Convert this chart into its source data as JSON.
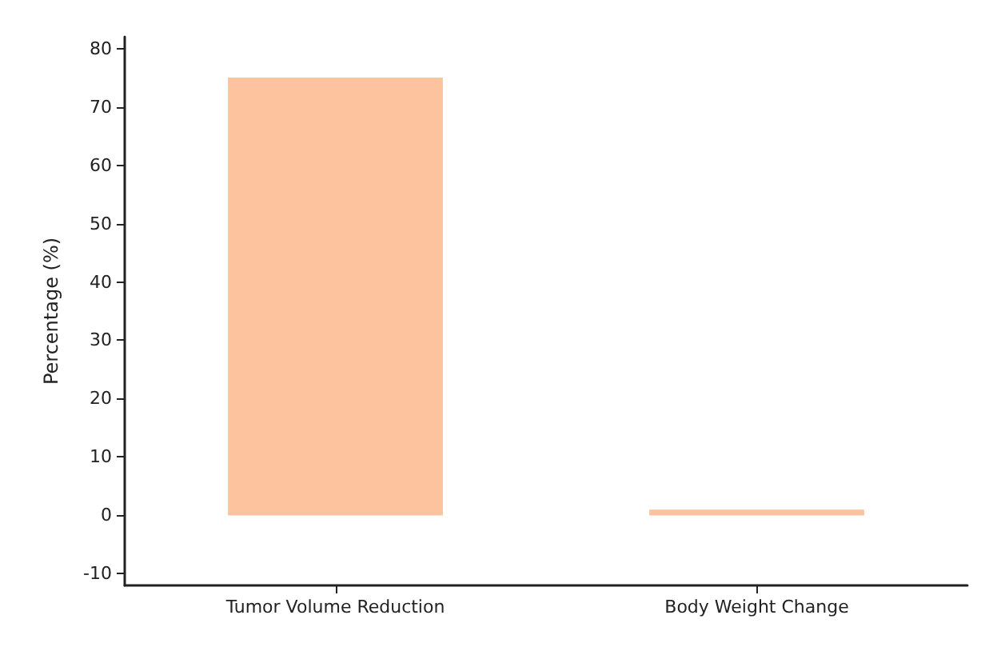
{
  "chart_data": {
    "type": "bar",
    "ylabel": "Percentage (%)",
    "categories": [
      "Tumor Volume Reduction",
      "Body Weight Change"
    ],
    "values": [
      75,
      1
    ],
    "color": "#fdc29e",
    "ylim": [
      -12,
      82
    ],
    "yticks": [
      -10,
      0,
      10,
      20,
      30,
      40,
      50,
      60,
      70,
      80
    ],
    "grid": false
  }
}
